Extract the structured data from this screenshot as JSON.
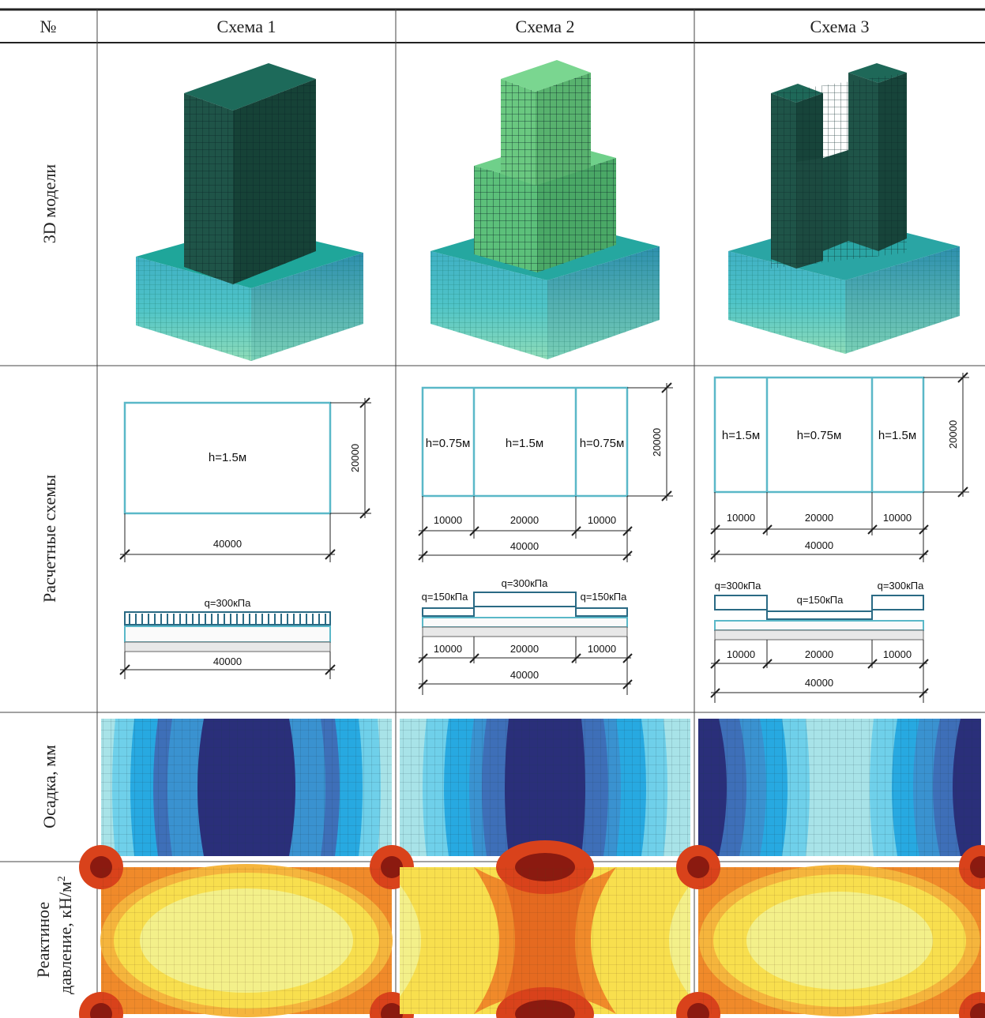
{
  "header": {
    "num": "№",
    "col1": "Схема 1",
    "col2": "Схема 2",
    "col3": "Схема 3"
  },
  "rows": {
    "models": "3D модели",
    "schemes": "Расчетные схемы",
    "settlement": "Осадка, мм",
    "pressure_line1": "Реактиное",
    "pressure_line2": "давление, кН/м",
    "pressure_sup": "2"
  },
  "scheme1": {
    "h_label": "h=1.5м",
    "width_dim": "40000",
    "height_dim": "20000",
    "load": "q=300кПа",
    "bottom_dim": "40000"
  },
  "scheme2": {
    "h_left": "h=0.75м",
    "h_mid": "h=1.5м",
    "h_right": "h=0.75м",
    "height_dim": "20000",
    "seg_left": "10000",
    "seg_mid": "20000",
    "seg_right": "10000",
    "total": "40000",
    "load_left": "q=150кПа",
    "load_mid": "q=300кПа",
    "load_right": "q=150кПа",
    "b_seg_left": "10000",
    "b_seg_mid": "20000",
    "b_seg_right": "10000",
    "b_total": "40000"
  },
  "scheme3": {
    "h_left": "h=1.5м",
    "h_mid": "h=0.75м",
    "h_right": "h=1.5м",
    "height_dim": "20000",
    "seg_left": "10000",
    "seg_mid": "20000",
    "seg_right": "10000",
    "total": "40000",
    "load_left": "q=300кПа",
    "load_mid": "q=150кПа",
    "load_right": "q=300кПа",
    "b_seg_left": "10000",
    "b_seg_mid": "20000",
    "b_seg_right": "10000",
    "b_total": "40000"
  },
  "colors": {
    "frame": "#5ab8c8",
    "dark_blue": "#2a2f7a",
    "mid_blue": "#3e6fb8",
    "cyan": "#27a9e1",
    "light_cyan": "#6fd0ea",
    "pale_cyan": "#a8e3e8",
    "dark_red": "#8b1a10",
    "red": "#d9421b",
    "orange": "#f08a2a",
    "light_orange": "#f5b53d",
    "yellow": "#f8df4e",
    "pale_yellow": "#f3f08a"
  }
}
